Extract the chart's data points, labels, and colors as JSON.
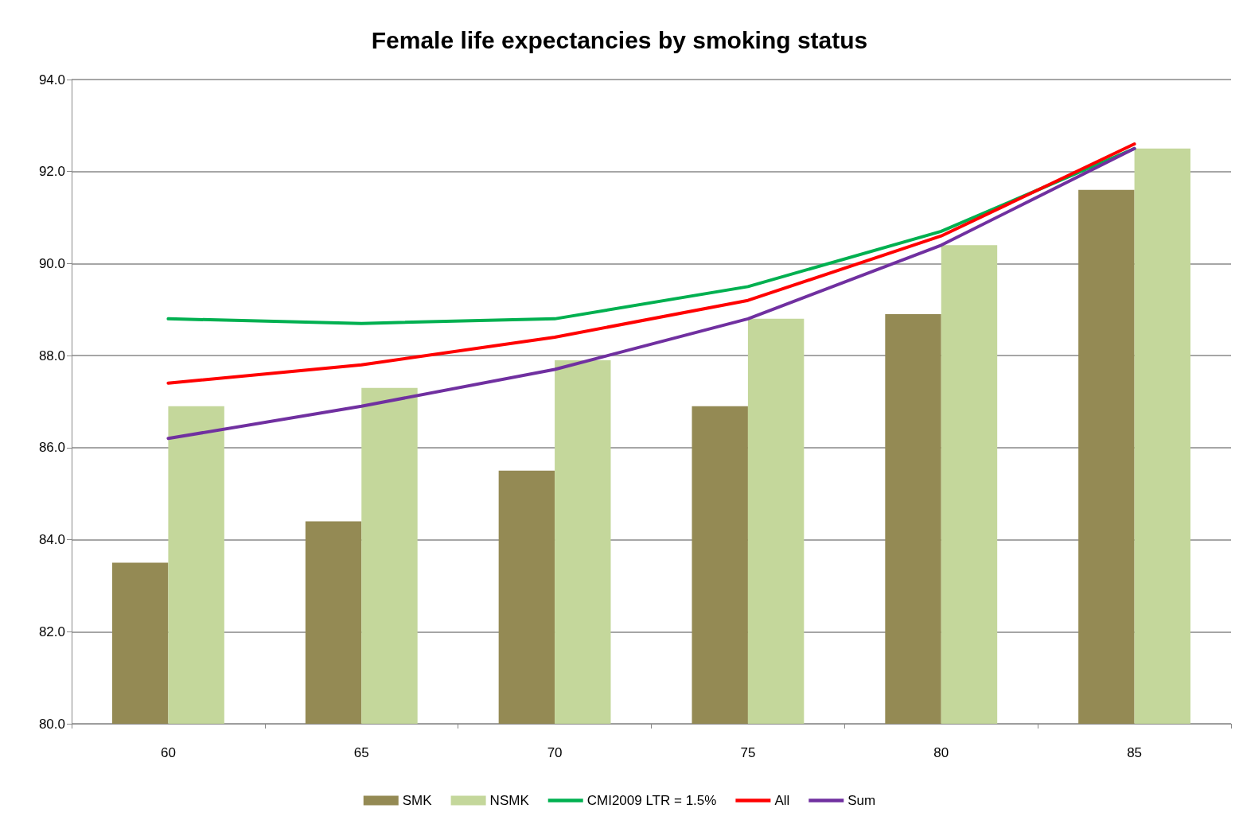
{
  "chart_data": {
    "type": "bar",
    "title": "Female life expectancies by smoking status",
    "categories": [
      "60",
      "65",
      "70",
      "75",
      "80",
      "85"
    ],
    "series": [
      {
        "name": "SMK",
        "color": "#948a54",
        "values": [
          83.5,
          84.4,
          85.5,
          86.9,
          88.9,
          91.6
        ]
      },
      {
        "name": "NSMK",
        "color": "#c4d79b",
        "values": [
          86.9,
          87.3,
          87.9,
          88.8,
          90.4,
          92.5
        ]
      },
      {
        "name": "CMI2009 LTR = 1.5%",
        "type": "line",
        "color": "#00b050",
        "values": [
          88.8,
          88.7,
          88.8,
          89.5,
          90.7,
          92.5
        ]
      },
      {
        "name": "All",
        "type": "line",
        "color": "#ff0000",
        "values": [
          87.4,
          87.8,
          88.4,
          89.2,
          90.6,
          92.6
        ]
      },
      {
        "name": "Sum",
        "type": "line",
        "color": "#7030a0",
        "values": [
          86.2,
          86.9,
          87.7,
          88.8,
          90.4,
          92.5
        ]
      }
    ],
    "ylim": [
      80,
      94
    ],
    "yticks": [
      {
        "value": 80,
        "label": "80.0"
      },
      {
        "value": 82,
        "label": "82.0"
      },
      {
        "value": 84,
        "label": "84.0"
      },
      {
        "value": 86,
        "label": "86.0"
      },
      {
        "value": 88,
        "label": "88.0"
      },
      {
        "value": 90,
        "label": "90.0"
      },
      {
        "value": 92,
        "label": "92.0"
      },
      {
        "value": 94,
        "label": "94.0"
      }
    ],
    "grid": "y",
    "legend": "bottom",
    "marker": "none",
    "line_style": "solid"
  }
}
